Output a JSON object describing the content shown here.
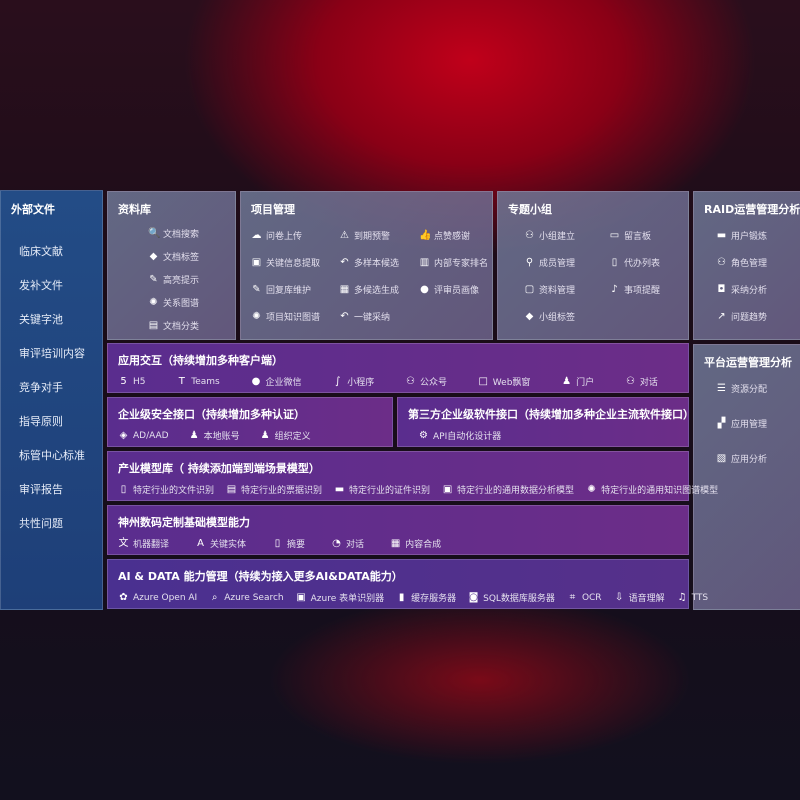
{
  "sidebar": {
    "title": "外部文件",
    "items": [
      "临床文献",
      "发补文件",
      "关键字池",
      "审评培训内容",
      "竞争对手",
      "指导原则",
      "标管中心标准",
      "审评报告",
      "共性问题"
    ]
  },
  "library": {
    "title": "资料库",
    "items": [
      {
        "icon": "document-search-icon",
        "label": "文档搜索"
      },
      {
        "icon": "tag-icon",
        "label": "文档标签"
      },
      {
        "icon": "pen-icon",
        "label": "高亮提示"
      },
      {
        "icon": "graph-icon",
        "label": "关系图谱"
      },
      {
        "icon": "classify-icon",
        "label": "文档分类"
      }
    ]
  },
  "project": {
    "title": "项目管理",
    "items": [
      {
        "icon": "cloud-upload-icon",
        "label": "问卷上传"
      },
      {
        "icon": "alarm-icon",
        "label": "到期预警"
      },
      {
        "icon": "thumbs-up-icon",
        "label": "点赞感谢"
      },
      {
        "icon": "extract-icon",
        "label": "关键信息提取"
      },
      {
        "icon": "reply-icon",
        "label": "多样本候选"
      },
      {
        "icon": "ranking-icon",
        "label": "内部专家排名"
      },
      {
        "icon": "edit-icon",
        "label": "回复库维护"
      },
      {
        "icon": "puzzle-icon",
        "label": "多候选生成"
      },
      {
        "icon": "user-icon",
        "label": "评审员画像"
      },
      {
        "icon": "graph-icon",
        "label": "项目知识图谱"
      },
      {
        "icon": "reply-icon",
        "label": "一键采纳"
      }
    ]
  },
  "group": {
    "title": "专题小组",
    "items": [
      {
        "icon": "users-icon",
        "label": "小组建立"
      },
      {
        "icon": "bbs-icon",
        "label": "留言板"
      },
      {
        "icon": "user-add-icon",
        "label": "成员管理"
      },
      {
        "icon": "clipboard-icon",
        "label": "代办列表"
      },
      {
        "icon": "folder-icon",
        "label": "资料管理"
      },
      {
        "icon": "bell-icon",
        "label": "事项提醒"
      },
      {
        "icon": "tag-icon",
        "label": "小组标签"
      }
    ]
  },
  "raid": {
    "title": "RAID运营管理分析",
    "items": [
      {
        "icon": "id-card-icon",
        "label": "用户锻炼"
      },
      {
        "icon": "users-icon",
        "label": "角色管理"
      },
      {
        "icon": "qa-icon",
        "label": "采纳分析"
      },
      {
        "icon": "trend-icon",
        "label": "问题趋势"
      }
    ]
  },
  "platform": {
    "title": "平台运营管理分析",
    "items": [
      {
        "icon": "list-icon",
        "label": "资源分配"
      },
      {
        "icon": "apps-icon",
        "label": "应用管理"
      },
      {
        "icon": "chart-icon",
        "label": "应用分析"
      }
    ]
  },
  "app": {
    "title": "应用交互（持续增加多种客户端）",
    "items": [
      {
        "icon": "html5-icon",
        "label": "H5"
      },
      {
        "icon": "teams-icon",
        "label": "Teams"
      },
      {
        "icon": "wechat-icon",
        "label": "企业微信"
      },
      {
        "icon": "miniprogram-icon",
        "label": "小程序"
      },
      {
        "icon": "users-icon",
        "label": "公众号"
      },
      {
        "icon": "window-icon",
        "label": "Web飘窗"
      },
      {
        "icon": "portal-icon",
        "label": "门户"
      },
      {
        "icon": "chat-users-icon",
        "label": "对话"
      }
    ]
  },
  "security": {
    "title": "企业级安全接口（持续增加多种认证）",
    "items": [
      {
        "icon": "ad-icon",
        "label": "AD/AAD"
      },
      {
        "icon": "local-account-icon",
        "label": "本地账号"
      },
      {
        "icon": "org-icon",
        "label": "组织定义"
      }
    ]
  },
  "thirdparty": {
    "title": "第三方企业级软件接口（持续增加多种企业主流软件接口）",
    "items": [
      {
        "icon": "gear-icon",
        "label": "API自动化设计器"
      }
    ]
  },
  "industry": {
    "title": "产业模型库（ 持续添加端到端场景模型）",
    "items": [
      {
        "icon": "file-icon",
        "label": "特定行业的文件识别"
      },
      {
        "icon": "receipt-icon",
        "label": "特定行业的票据识别"
      },
      {
        "icon": "id-card-icon",
        "label": "特定行业的证件识别"
      },
      {
        "icon": "image-icon",
        "label": "特定行业的通用数据分析模型"
      },
      {
        "icon": "graph-icon",
        "label": "特定行业的通用知识图谱模型"
      }
    ]
  },
  "base": {
    "title": "神州数码定制基础模型能力",
    "items": [
      {
        "icon": "translate-icon",
        "label": "机器翻译"
      },
      {
        "icon": "entity-icon",
        "label": "关键实体"
      },
      {
        "icon": "summary-icon",
        "label": "摘要"
      },
      {
        "icon": "chat-icon",
        "label": "对话"
      },
      {
        "icon": "puzzle-icon",
        "label": "内容合成"
      }
    ]
  },
  "aidata": {
    "title": "AI & DATA 能力管理（持续为接入更多AI&DATA能力）",
    "items": [
      {
        "icon": "openai-icon",
        "label": "Azure Open AI"
      },
      {
        "icon": "search-icon",
        "label": "Azure Search"
      },
      {
        "icon": "form-icon",
        "label": "Azure 表单识别器"
      },
      {
        "icon": "cache-icon",
        "label": "缓存服务器"
      },
      {
        "icon": "database-icon",
        "label": "SQL数据库服务器"
      },
      {
        "icon": "ocr-icon",
        "label": "OCR"
      },
      {
        "icon": "speech-icon",
        "label": "语音理解"
      },
      {
        "icon": "tts-icon",
        "label": "TTS"
      }
    ]
  }
}
